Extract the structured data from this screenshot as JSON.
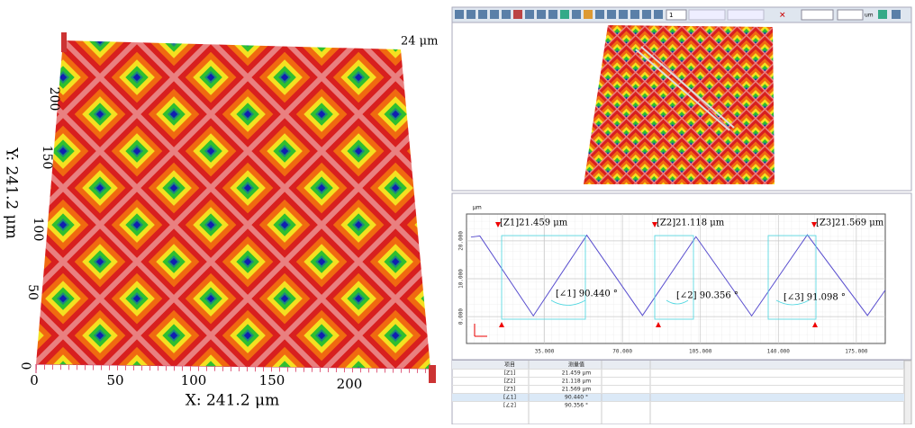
{
  "surface_view": {
    "z_max_label": "24 μm",
    "x_axis_label": "X: 241.2 μm",
    "y_axis_label": "Y: 241.2 μm",
    "x_tick_labels": [
      "0",
      "50",
      "100",
      "150",
      "200"
    ],
    "y_tick_labels": [
      "0",
      "50",
      "100",
      "150",
      "200"
    ]
  },
  "toolbar": {
    "zoom": "1",
    "unit": "um"
  },
  "profile_chart": {
    "type": "line",
    "y_unit": "μm",
    "color": "#5a4fcf",
    "x": [
      2,
      6,
      30,
      54,
      79,
      103,
      128,
      153,
      180,
      188
    ],
    "y": [
      21,
      21.3,
      0.2,
      21.5,
      0.3,
      21.1,
      0.2,
      21.6,
      0.3,
      7
    ],
    "xlim": [
      0,
      188
    ],
    "ylim": [
      -7.1,
      27.1
    ],
    "xticks": [
      {
        "value": 35,
        "label": "35.000"
      },
      {
        "value": 70,
        "label": "70.000"
      },
      {
        "value": 105,
        "label": "105.000"
      },
      {
        "value": 140,
        "label": "140.000"
      },
      {
        "value": 175,
        "label": "175.000"
      }
    ],
    "yticks": [
      {
        "value": 0,
        "label": "0.000"
      },
      {
        "value": 10,
        "label": "10.000"
      },
      {
        "value": 20,
        "label": "20.000"
      }
    ],
    "markers": [
      "[Z1]21.459 μm",
      "[Z2]21.118 μm",
      "[Z3]21.569 μm"
    ],
    "angles": [
      "[∠1]  90.440 °",
      "[∠2]  90.356 °",
      "[∠3]  91.098 °"
    ]
  },
  "table": {
    "header": [
      "项目",
      "测量值"
    ],
    "rows": [
      [
        "[Z1]",
        "21.459 μm"
      ],
      [
        "[Z2]",
        "21.118 μm"
      ],
      [
        "[Z3]",
        "21.569 μm"
      ],
      [
        "[∠1]",
        "90.440 °"
      ],
      [
        "[∠2]",
        "90.356 °"
      ]
    ]
  }
}
